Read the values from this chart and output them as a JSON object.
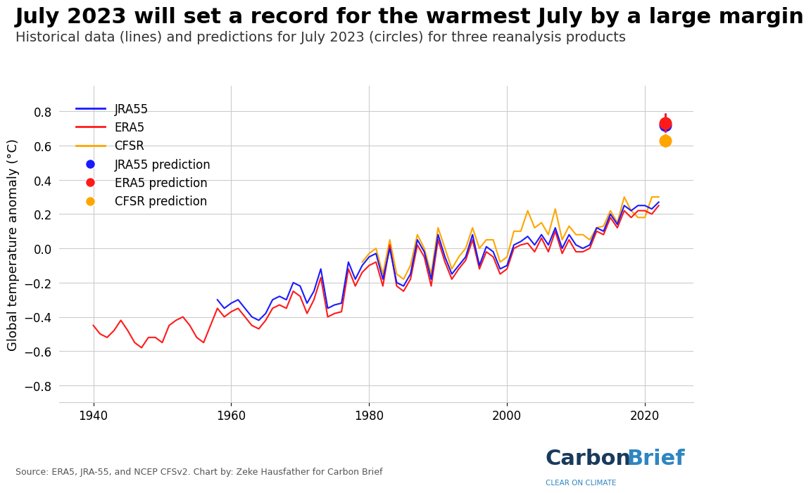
{
  "title": "July 2023 will set a record for the warmest July by a large margin",
  "subtitle": "Historical data (lines) and predictions for July 2023 (circles) for three reanalysis products",
  "ylabel": "Global temperature anomaly (°C)",
  "source_text": "Source: ERA5, JRA-55, and NCEP CFSv2. Chart by: Zeke Hausfather for Carbon Brief",
  "xlim": [
    1935,
    2027
  ],
  "ylim": [
    -0.9,
    0.95
  ],
  "yticks": [
    -0.8,
    -0.6,
    -0.4,
    -0.2,
    0.0,
    0.2,
    0.4,
    0.6,
    0.8
  ],
  "xticks": [
    1940,
    1960,
    1980,
    2000,
    2020
  ],
  "colors": {
    "JRA55": "#1a1aff",
    "ERA5": "#ff1a1a",
    "CFSR": "#ffa500"
  },
  "predictions": {
    "JRA55": {
      "year": 2023,
      "value": 0.72,
      "yerr_low": 0.04,
      "yerr_high": 0.07
    },
    "ERA5": {
      "year": 2023,
      "value": 0.73,
      "yerr_low": 0.05,
      "yerr_high": 0.06
    },
    "CFSR": {
      "year": 2023,
      "value": 0.63,
      "yerr_low": 0.04,
      "yerr_high": 0.04
    }
  },
  "JRA55": {
    "years": [
      1958,
      1959,
      1960,
      1961,
      1962,
      1963,
      1964,
      1965,
      1966,
      1967,
      1968,
      1969,
      1970,
      1971,
      1972,
      1973,
      1974,
      1975,
      1976,
      1977,
      1978,
      1979,
      1980,
      1981,
      1982,
      1983,
      1984,
      1985,
      1986,
      1987,
      1988,
      1989,
      1990,
      1991,
      1992,
      1993,
      1994,
      1995,
      1996,
      1997,
      1998,
      1999,
      2000,
      2001,
      2002,
      2003,
      2004,
      2005,
      2006,
      2007,
      2008,
      2009,
      2010,
      2011,
      2012,
      2013,
      2014,
      2015,
      2016,
      2017,
      2018,
      2019,
      2020,
      2021,
      2022
    ],
    "values": [
      -0.3,
      -0.35,
      -0.32,
      -0.3,
      -0.35,
      -0.4,
      -0.42,
      -0.38,
      -0.3,
      -0.28,
      -0.3,
      -0.2,
      -0.22,
      -0.32,
      -0.25,
      -0.12,
      -0.35,
      -0.33,
      -0.32,
      -0.08,
      -0.18,
      -0.1,
      -0.05,
      -0.03,
      -0.18,
      0.0,
      -0.2,
      -0.22,
      -0.15,
      0.05,
      -0.02,
      -0.18,
      0.08,
      -0.05,
      -0.15,
      -0.1,
      -0.05,
      0.08,
      -0.1,
      0.01,
      -0.02,
      -0.12,
      -0.1,
      0.02,
      0.04,
      0.07,
      0.02,
      0.08,
      0.02,
      0.12,
      0.0,
      0.08,
      0.02,
      0.0,
      0.02,
      0.12,
      0.1,
      0.2,
      0.14,
      0.25,
      0.22,
      0.25,
      0.25,
      0.23,
      0.27
    ]
  },
  "ERA5": {
    "years": [
      1940,
      1941,
      1942,
      1943,
      1944,
      1945,
      1946,
      1947,
      1948,
      1949,
      1950,
      1951,
      1952,
      1953,
      1954,
      1955,
      1956,
      1957,
      1958,
      1959,
      1960,
      1961,
      1962,
      1963,
      1964,
      1965,
      1966,
      1967,
      1968,
      1969,
      1970,
      1971,
      1972,
      1973,
      1974,
      1975,
      1976,
      1977,
      1978,
      1979,
      1980,
      1981,
      1982,
      1983,
      1984,
      1985,
      1986,
      1987,
      1988,
      1989,
      1990,
      1991,
      1992,
      1993,
      1994,
      1995,
      1996,
      1997,
      1998,
      1999,
      2000,
      2001,
      2002,
      2003,
      2004,
      2005,
      2006,
      2007,
      2008,
      2009,
      2010,
      2011,
      2012,
      2013,
      2014,
      2015,
      2016,
      2017,
      2018,
      2019,
      2020,
      2021,
      2022
    ],
    "values": [
      -0.45,
      -0.5,
      -0.52,
      -0.48,
      -0.42,
      -0.48,
      -0.55,
      -0.58,
      -0.52,
      -0.52,
      -0.55,
      -0.45,
      -0.42,
      -0.4,
      -0.45,
      -0.52,
      -0.55,
      -0.45,
      -0.35,
      -0.4,
      -0.37,
      -0.35,
      -0.4,
      -0.45,
      -0.47,
      -0.42,
      -0.35,
      -0.33,
      -0.35,
      -0.25,
      -0.28,
      -0.38,
      -0.3,
      -0.17,
      -0.4,
      -0.38,
      -0.37,
      -0.12,
      -0.22,
      -0.14,
      -0.1,
      -0.08,
      -0.22,
      0.02,
      -0.22,
      -0.25,
      -0.18,
      0.02,
      -0.05,
      -0.22,
      0.05,
      -0.08,
      -0.18,
      -0.12,
      -0.07,
      0.05,
      -0.12,
      -0.02,
      -0.05,
      -0.15,
      -0.12,
      -0.0,
      0.02,
      0.03,
      -0.02,
      0.06,
      -0.02,
      0.1,
      -0.03,
      0.05,
      -0.02,
      -0.02,
      0.0,
      0.1,
      0.08,
      0.18,
      0.12,
      0.22,
      0.18,
      0.22,
      0.22,
      0.2,
      0.25
    ]
  },
  "CFSR": {
    "years": [
      1979,
      1980,
      1981,
      1982,
      1983,
      1984,
      1985,
      1986,
      1987,
      1988,
      1989,
      1990,
      1991,
      1992,
      1993,
      1994,
      1995,
      1996,
      1997,
      1998,
      1999,
      2000,
      2001,
      2002,
      2003,
      2004,
      2005,
      2006,
      2007,
      2008,
      2009,
      2010,
      2011,
      2012,
      2013,
      2014,
      2015,
      2016,
      2017,
      2018,
      2019,
      2020,
      2021,
      2022
    ],
    "values": [
      -0.08,
      -0.03,
      -0.0,
      -0.15,
      0.05,
      -0.15,
      -0.18,
      -0.1,
      0.08,
      0.0,
      -0.15,
      0.12,
      0.0,
      -0.12,
      -0.05,
      0.0,
      0.12,
      0.0,
      0.05,
      0.05,
      -0.08,
      -0.05,
      0.1,
      0.1,
      0.22,
      0.12,
      0.15,
      0.08,
      0.23,
      0.05,
      0.13,
      0.08,
      0.08,
      0.05,
      0.12,
      0.13,
      0.22,
      0.15,
      0.3,
      0.22,
      0.18,
      0.18,
      0.3,
      0.3
    ]
  },
  "background_color": "#ffffff",
  "grid_color": "#cccccc",
  "title_fontsize": 22,
  "subtitle_fontsize": 14,
  "axis_fontsize": 13,
  "tick_fontsize": 12,
  "legend_fontsize": 12,
  "carbon_color1": "#1a3a5c",
  "carbon_color2": "#2e86c1",
  "source_fontsize": 9,
  "logo_fontsize": 22,
  "logo_sub_fontsize": 7.5
}
